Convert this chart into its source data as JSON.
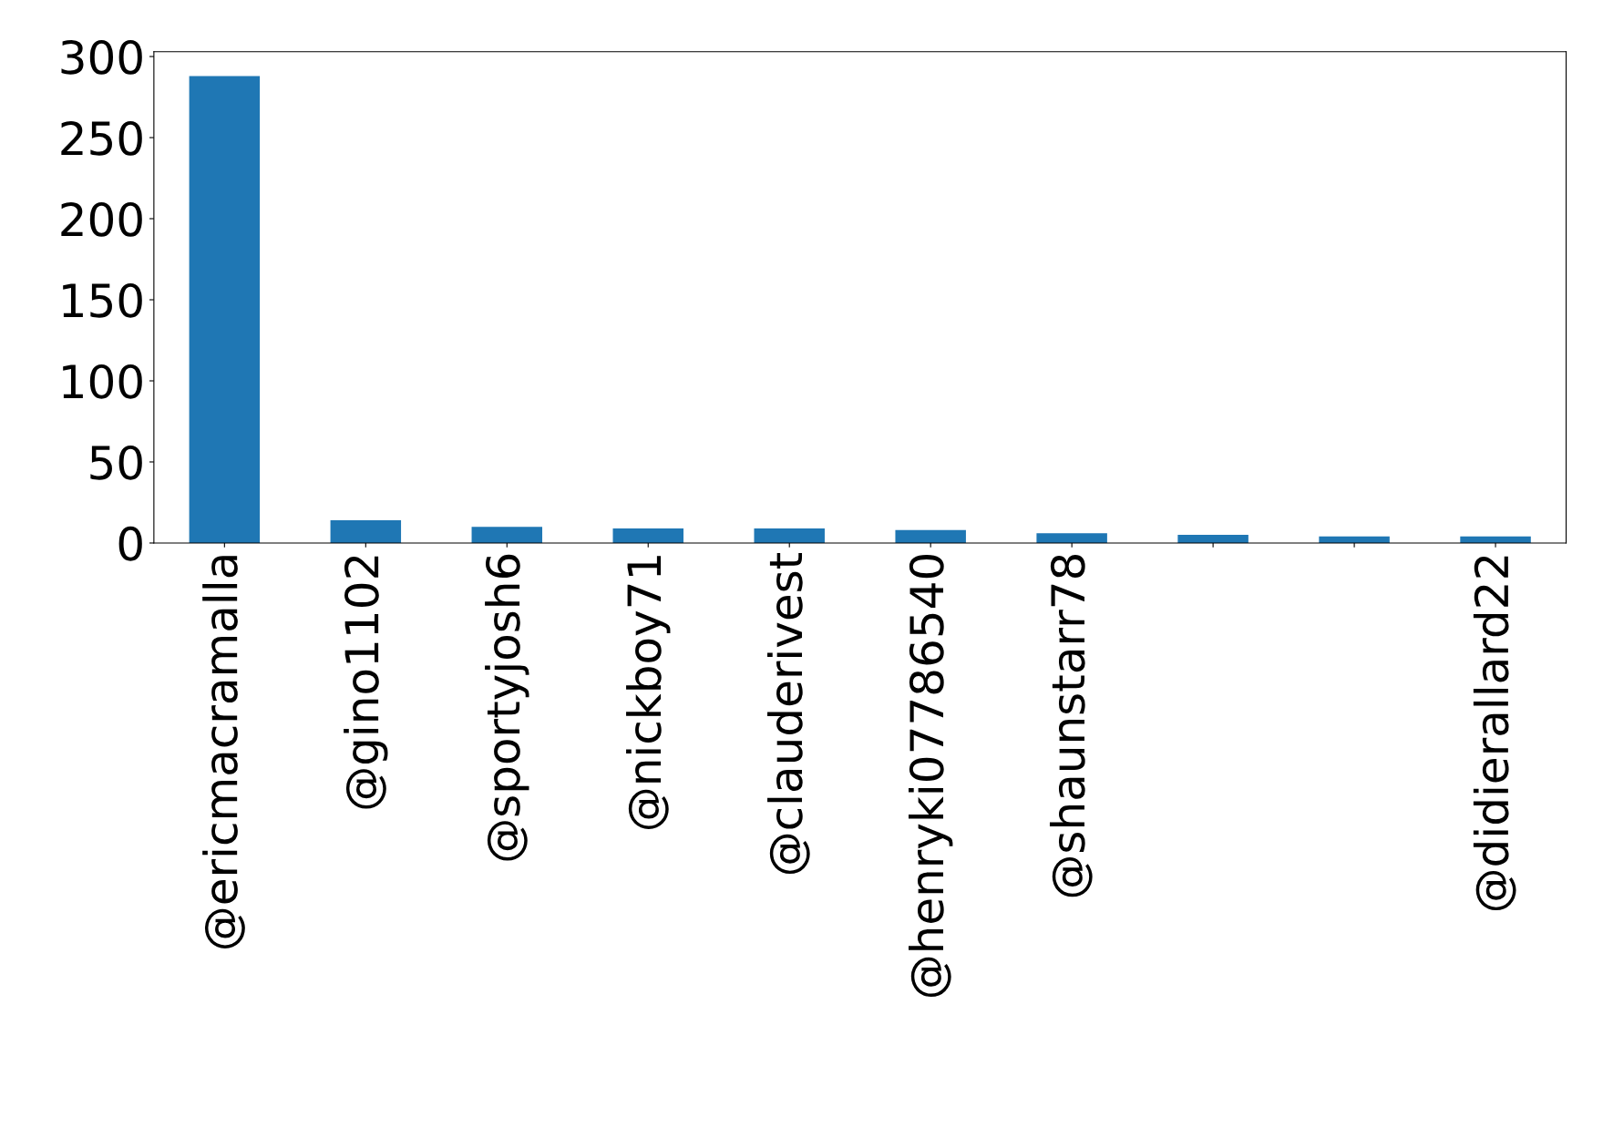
{
  "chart_data": {
    "type": "bar",
    "categories": [
      "@ericmacramalla",
      "@gino1102",
      "@sportyjosh6",
      "@nickboy71",
      "@clauderivest",
      "@henryki07786540",
      "@shaunstarr78",
      null,
      null,
      "@didierallard22"
    ],
    "values": [
      288,
      14,
      10,
      9,
      9,
      8,
      6,
      5,
      4,
      4
    ],
    "color": "#1f77b4",
    "ylim": [
      0,
      303
    ],
    "yticks": [
      0,
      50,
      100,
      150,
      200,
      250,
      300
    ],
    "grid": false,
    "legend": false
  }
}
